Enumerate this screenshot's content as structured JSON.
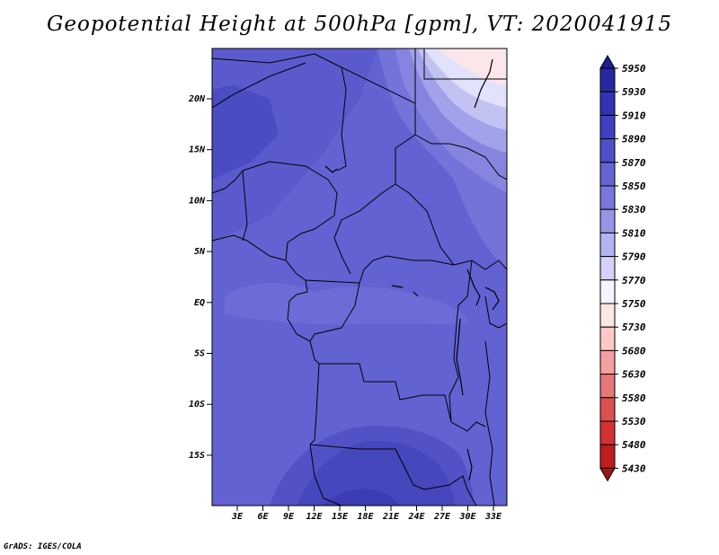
{
  "title": "Geopotential Height at 500hPa [gpm], VT: 2020041915",
  "footer": "GrADS: IGES/COLA",
  "map": {
    "lat_labels": [
      "20N",
      "15N",
      "10N",
      "5N",
      "EQ",
      "5S",
      "10S",
      "15S"
    ],
    "lon_labels": [
      "3E",
      "6E",
      "9E",
      "12E",
      "15E",
      "18E",
      "21E",
      "24E",
      "27E",
      "30E",
      "33E"
    ]
  },
  "colorbar": {
    "levels": [
      "5950",
      "5930",
      "5910",
      "5890",
      "5870",
      "5850",
      "5830",
      "5810",
      "5790",
      "5770",
      "5750",
      "5730",
      "5680",
      "5630",
      "5580",
      "5530",
      "5480",
      "5430"
    ],
    "colors": [
      "#1e1e96",
      "#2828a0",
      "#3232b4",
      "#4040c0",
      "#5050c8",
      "#6464d2",
      "#7878dc",
      "#9696e6",
      "#b4b4f0",
      "#d2d2fa",
      "#f5f5ff",
      "#ffe6e6",
      "#ffc8c8",
      "#f5a0a0",
      "#e67878",
      "#dc5050",
      "#d23232",
      "#be1e1e",
      "#a01414"
    ]
  }
}
